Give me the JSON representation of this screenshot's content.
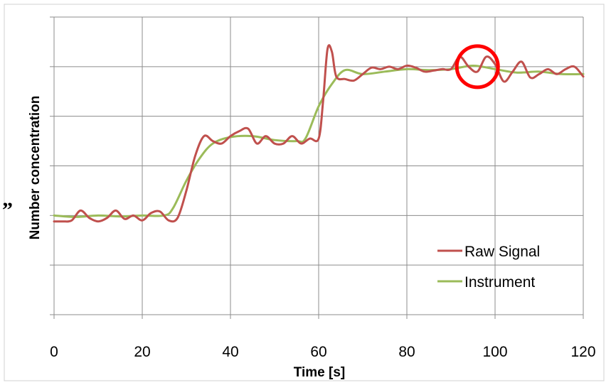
{
  "chart_data": {
    "type": "line",
    "title": "",
    "xlabel": "Time [s]",
    "ylabel": "Number concentration",
    "xlim": [
      0,
      120
    ],
    "ylim": [
      0,
      6
    ],
    "x_ticks": [
      0,
      20,
      40,
      60,
      80,
      100,
      120
    ],
    "x_tick_labels": [
      "0",
      "20",
      "40",
      "60",
      "80",
      "100",
      "120"
    ],
    "y_gridlines": [
      0,
      1,
      2,
      3,
      4,
      5,
      6
    ],
    "y_tick_labels_shown": false,
    "grid": true,
    "legend_position": "bottom-right",
    "stray_mark": "”",
    "series": [
      {
        "name": "Raw Signal",
        "color": "#c0504d",
        "x": [
          0,
          2,
          4,
          6,
          8,
          10,
          12,
          14,
          16,
          18,
          20,
          22,
          24,
          26,
          28,
          30,
          32,
          34,
          36,
          38,
          40,
          42,
          44,
          46,
          48,
          50,
          52,
          54,
          56,
          58,
          60,
          61,
          62,
          63,
          64,
          66,
          68,
          70,
          72,
          74,
          76,
          78,
          80,
          82,
          84,
          86,
          88,
          90,
          92,
          94,
          96,
          98,
          100,
          102,
          104,
          106,
          108,
          110,
          112,
          114,
          116,
          118,
          120
        ],
        "y": [
          1.88,
          1.88,
          1.9,
          2.1,
          1.95,
          1.88,
          1.95,
          2.1,
          1.93,
          2.0,
          1.9,
          2.05,
          2.08,
          1.9,
          1.95,
          2.5,
          3.2,
          3.6,
          3.5,
          3.45,
          3.6,
          3.7,
          3.75,
          3.45,
          3.6,
          3.45,
          3.45,
          3.6,
          3.45,
          3.55,
          3.55,
          4.3,
          5.35,
          5.3,
          4.8,
          4.75,
          4.72,
          4.85,
          4.98,
          4.95,
          5.0,
          4.95,
          5.02,
          4.98,
          4.9,
          4.92,
          4.95,
          4.95,
          5.2,
          5.0,
          4.9,
          5.2,
          5.05,
          4.7,
          4.9,
          5.1,
          4.78,
          4.85,
          4.95,
          4.85,
          4.95,
          5.0,
          4.8
        ]
      },
      {
        "name": "Instrument",
        "color": "#9bbb59",
        "x": [
          0,
          5,
          10,
          15,
          20,
          25,
          27,
          30,
          33,
          36,
          40,
          45,
          50,
          55,
          57,
          60,
          63,
          66,
          70,
          75,
          80,
          85,
          90,
          95,
          100,
          105,
          110,
          115,
          120
        ],
        "y": [
          2.0,
          1.97,
          2.0,
          1.98,
          2.0,
          2.0,
          2.15,
          2.7,
          3.15,
          3.45,
          3.58,
          3.6,
          3.52,
          3.5,
          3.55,
          4.2,
          4.65,
          4.93,
          4.85,
          4.9,
          4.95,
          4.93,
          4.95,
          5.02,
          4.95,
          4.88,
          4.9,
          4.85,
          4.85
        ]
      }
    ],
    "annotations": [
      {
        "type": "circle",
        "x": 96,
        "y": 5.0,
        "color": "#ff0000"
      }
    ]
  }
}
